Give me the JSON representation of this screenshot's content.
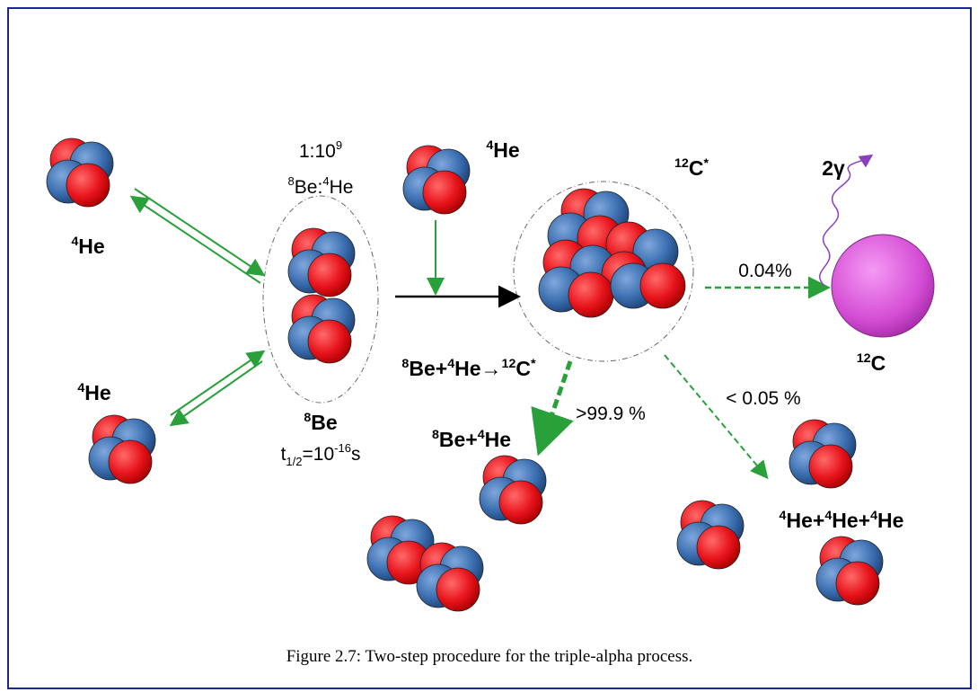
{
  "labels": {
    "he_left_top": [
      {
        "sup": "4"
      },
      {
        "text": "He"
      }
    ],
    "he_left_bottom": [
      {
        "sup": "4"
      },
      {
        "text": "He"
      }
    ],
    "ratio": [
      {
        "text": "1:10"
      },
      {
        "sup": "9"
      }
    ],
    "ratio_species": [
      {
        "sup": "8"
      },
      {
        "text": "Be:"
      },
      {
        "sup": "4"
      },
      {
        "text": "He"
      }
    ],
    "be8": [
      {
        "sup": "8"
      },
      {
        "text": "Be"
      }
    ],
    "half_life": [
      {
        "text": "t"
      },
      {
        "sub": "1/2"
      },
      {
        "text": "=10"
      },
      {
        "sup": "-16"
      },
      {
        "text": "s"
      }
    ],
    "he_top": [
      {
        "sup": "4"
      },
      {
        "text": "He"
      }
    ],
    "c12_excited": [
      {
        "sup": "12"
      },
      {
        "text": "C"
      },
      {
        "sup": "*"
      }
    ],
    "gamma": [
      {
        "text": "2γ"
      }
    ],
    "branch_gamma": [
      {
        "text": "0.04%"
      }
    ],
    "c12": [
      {
        "sup": "12"
      },
      {
        "text": "C"
      }
    ],
    "reaction": [
      {
        "sup": "8"
      },
      {
        "text": "Be+"
      },
      {
        "sup": "4"
      },
      {
        "text": "He"
      },
      {
        "text": "→"
      },
      {
        "sup": "12"
      },
      {
        "text": "C"
      },
      {
        "sup": "*"
      }
    ],
    "branch_back": [
      {
        "text": ">99.9 %"
      }
    ],
    "products_back": [
      {
        "sup": "8"
      },
      {
        "text": "Be+"
      },
      {
        "sup": "4"
      },
      {
        "text": "He"
      }
    ],
    "branch_alpha": [
      {
        "text": "< 0.05 %"
      }
    ],
    "products_alpha": [
      {
        "sup": "4"
      },
      {
        "text": "He+"
      },
      {
        "sup": "4"
      },
      {
        "text": "He+"
      },
      {
        "sup": "4"
      },
      {
        "text": "He"
      }
    ]
  },
  "caption": "Figure 2.7: Two-step procedure for the triple-alpha process."
}
